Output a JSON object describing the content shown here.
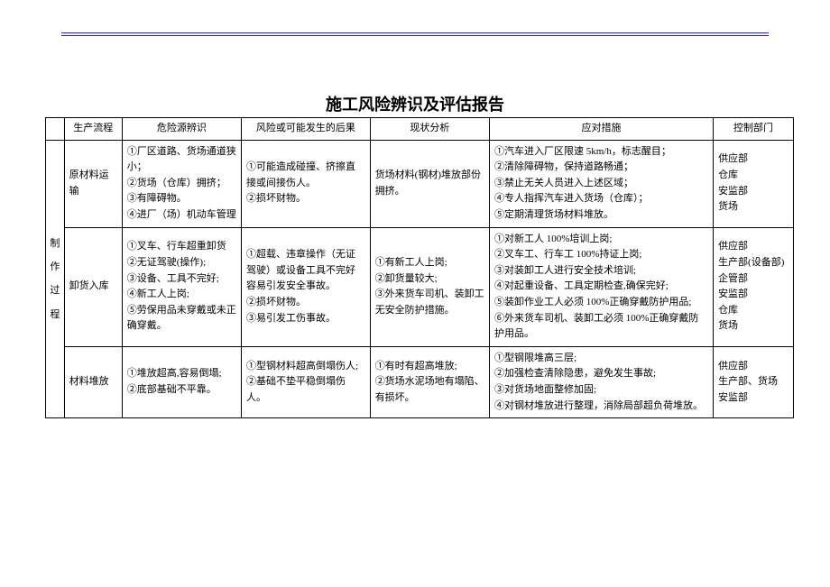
{
  "title": "施工风险辨识及评估报告",
  "headers": {
    "phase": "",
    "process": "生产流程",
    "hazard": "危险源辨识",
    "risk": "风险或可能发生的后果",
    "status": "现状分析",
    "measure": "应对措施",
    "dept": "控制部门"
  },
  "phase_label": "制\n作\n过\n程",
  "rows": [
    {
      "process": "原材料运输",
      "hazard": "①厂区道路、货场通道狭小；\n②货场（仓库）拥挤；\n③有障碍物。\n④进厂（场）机动车管理",
      "risk": "①可能造成碰撞、挤擦直接或间接伤人。\n②损坏财物。",
      "status": "货场材料(钢材)堆放部份拥挤。",
      "measure": "①汽车进入厂区限速 5km/h，标志醒目；\n②清除障碍物，保持道路畅通；\n③禁止无关人员进入上述区域；\n④专人指挥汽车进入货场（仓库）；\n⑤定期清理货场材料堆放。",
      "dept": "供应部\n仓库\n安监部\n货场"
    },
    {
      "process": "卸货入库",
      "hazard": "①叉车、行车超重卸货\n②无证驾驶(操作);\n③设备、工具不完好;\n④新工人上岗;\n⑤劳保用品未穿戴或未正确穿戴。",
      "risk": "①超载、违章操作（无证驾驶）或设备工具不完好容易引发安全事故。\n②损坏财物。\n③易引发工伤事故。",
      "status": "①有新工人上岗;\n②卸货量较大;\n③外来货车司机、装卸工无安全防护措施。",
      "measure": "①对新工人 100%培训上岗;\n②叉车工、行车工 100%持证上岗;\n③对装卸工人进行安全技术培训;\n④对起重设备、工具定期检查,确保完好;\n⑤装卸作业工人必须 100%正确穿戴防护用品;\n⑥外来货车司机、装卸工必须 100%正确穿戴防护用品。",
      "dept": "供应部\n生产部(设备部)\n企管部\n安监部\n仓库\n货场"
    },
    {
      "process": "材料堆放",
      "hazard": "①堆放超高,容易倒塌;\n②底部基础不平靠。",
      "risk": "①型钢材料超高倒塌伤人;\n②基础不垫平稳倒塌伤人。",
      "status": "①有时有超高堆放;\n②货场水泥场地有塌陷、有损坏。",
      "measure": "①型钢限堆高三层;\n②加强检查清除隐患，避免发生事故;\n③对货场地面整修加固;\n④对钢材堆放进行整理，消除局部超负荷堆放。",
      "dept": "供应部\n生产部、货场\n安监部"
    }
  ]
}
